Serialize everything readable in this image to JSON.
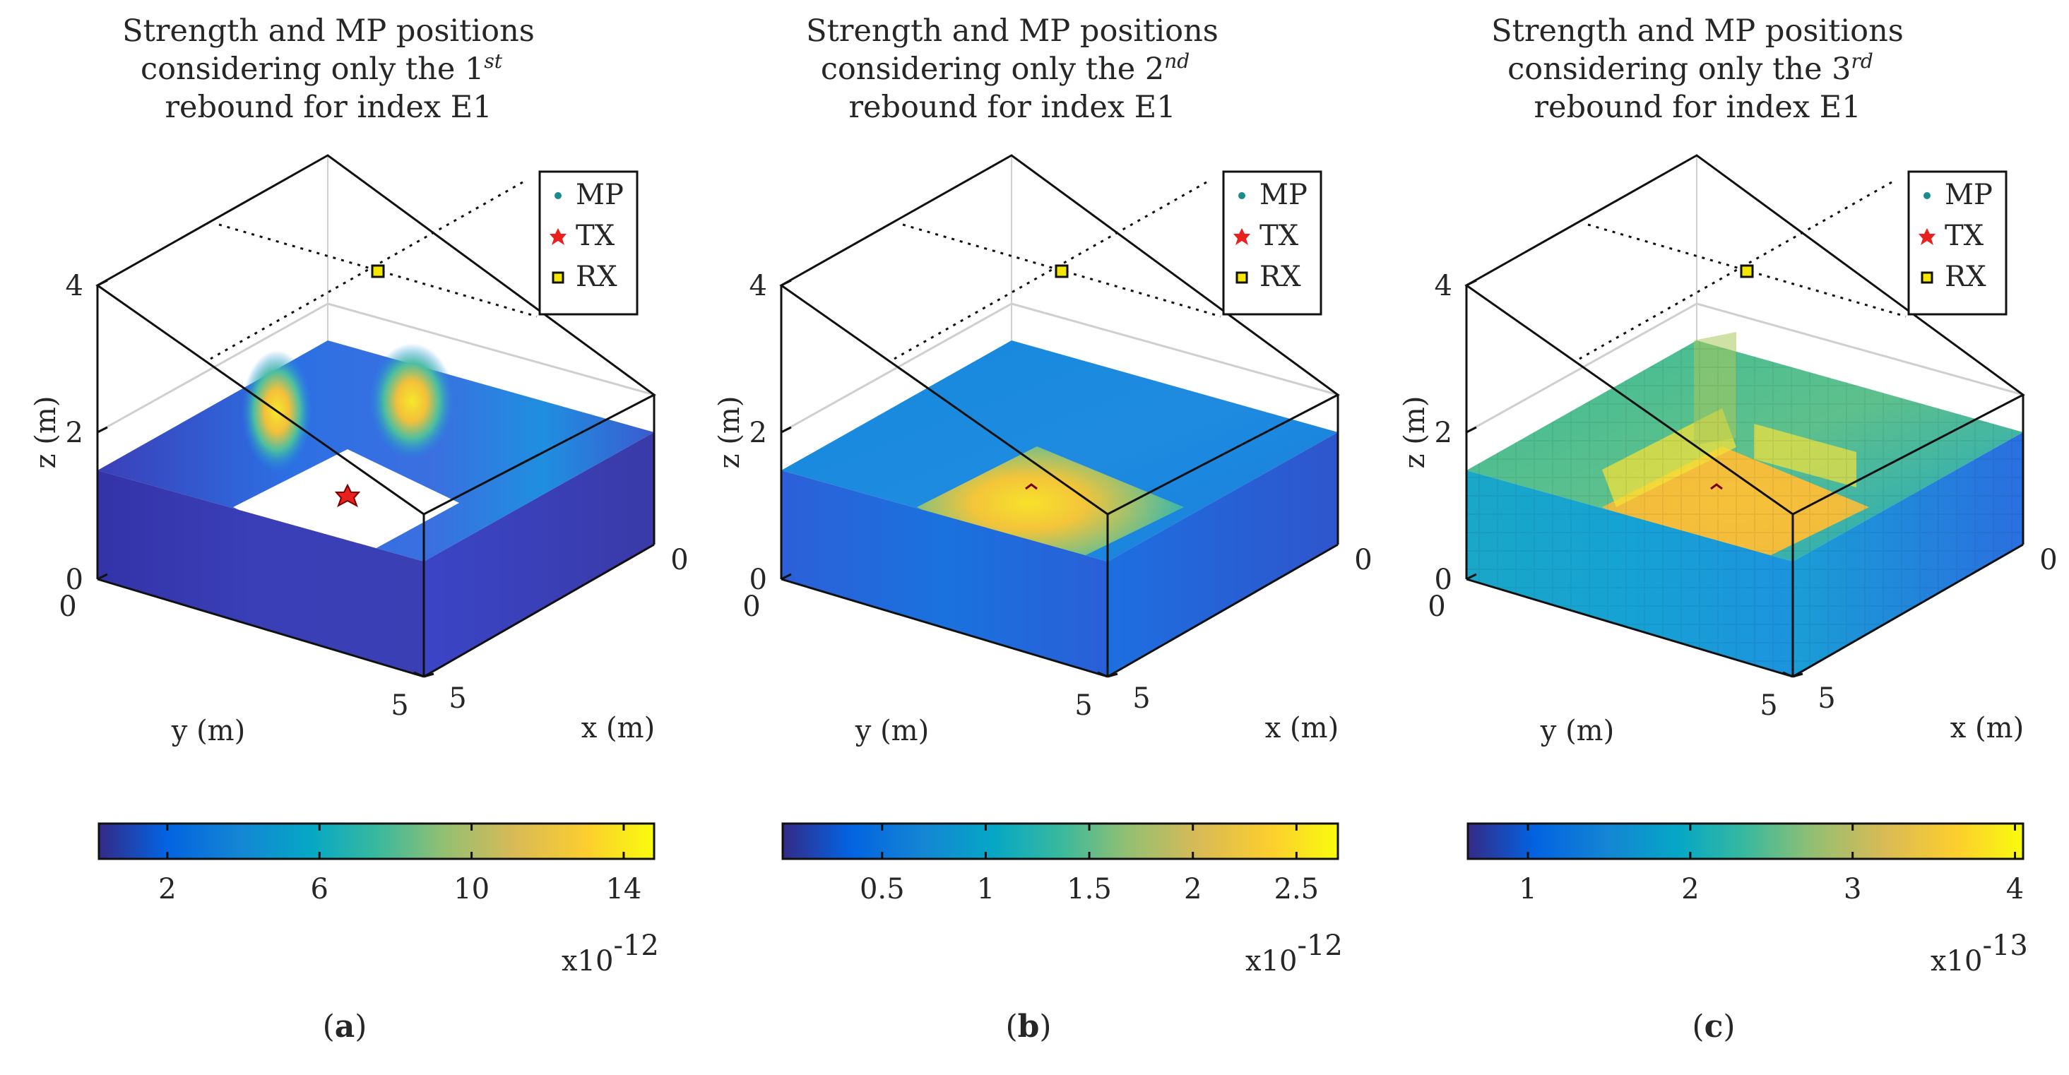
{
  "figure": {
    "panel_labels": [
      "a",
      "b",
      "c"
    ]
  },
  "chart_data": [
    {
      "type": "heatmap",
      "title_lines": [
        "Strength and MP positions",
        "considering only the 1",
        "rebound for index E1"
      ],
      "title_superscript": "st",
      "xlabel": "x (m)",
      "ylabel": "y (m)",
      "zlabel": "z (m)",
      "x_ticks": [
        "0",
        "5"
      ],
      "y_ticks": [
        "0",
        "5"
      ],
      "z_ticks": [
        "0",
        "2",
        "4"
      ],
      "xlim": [
        0,
        5
      ],
      "ylim": [
        0,
        5
      ],
      "zlim": [
        0,
        4
      ],
      "legend": [
        {
          "label": "MP",
          "marker": "dot",
          "color": "#1b8c8c"
        },
        {
          "label": "TX",
          "marker": "hexagram",
          "color": "#e8211f"
        },
        {
          "label": "RX",
          "marker": "square",
          "color": "#f5e800"
        }
      ],
      "colorbar": {
        "ticks": [
          "2",
          "6",
          "10",
          "14"
        ],
        "tick_values": [
          2,
          6,
          10,
          14
        ],
        "range": [
          0.2,
          14.8
        ],
        "exponent_base": "x10",
        "exponent": "-12"
      },
      "surface_peak_level": 1.0,
      "panel_label": "a"
    },
    {
      "type": "heatmap",
      "title_lines": [
        "Strength and MP positions",
        "considering only the 2",
        "rebound for index E1"
      ],
      "title_superscript": "nd",
      "xlabel": "x (m)",
      "ylabel": "y (m)",
      "zlabel": "z (m)",
      "x_ticks": [
        "0",
        "5"
      ],
      "y_ticks": [
        "0",
        "5"
      ],
      "z_ticks": [
        "0",
        "2",
        "4"
      ],
      "xlim": [
        0,
        5
      ],
      "ylim": [
        0,
        5
      ],
      "zlim": [
        0,
        4
      ],
      "legend": [
        {
          "label": "MP",
          "marker": "dot",
          "color": "#1b8c8c"
        },
        {
          "label": "TX",
          "marker": "hexagram",
          "color": "#e8211f"
        },
        {
          "label": "RX",
          "marker": "square",
          "color": "#f5e800"
        }
      ],
      "colorbar": {
        "ticks": [
          "0.5",
          "1",
          "1.5",
          "2",
          "2.5"
        ],
        "tick_values": [
          0.5,
          1,
          1.5,
          2,
          2.5
        ],
        "range": [
          0.02,
          2.7
        ],
        "exponent_base": "x10",
        "exponent": "-12"
      },
      "surface_peak_level": 1.0,
      "panel_label": "b"
    },
    {
      "type": "heatmap",
      "title_lines": [
        "Strength and MP positions",
        "considering only the 3",
        "rebound for index E1"
      ],
      "title_superscript": "rd",
      "xlabel": "x (m)",
      "ylabel": "y (m)",
      "zlabel": "z (m)",
      "x_ticks": [
        "0",
        "5"
      ],
      "y_ticks": [
        "0",
        "5"
      ],
      "z_ticks": [
        "0",
        "2",
        "4"
      ],
      "xlim": [
        0,
        5
      ],
      "ylim": [
        0,
        5
      ],
      "zlim": [
        0,
        4
      ],
      "legend": [
        {
          "label": "MP",
          "marker": "dot",
          "color": "#1b8c8c"
        },
        {
          "label": "TX",
          "marker": "hexagram",
          "color": "#e8211f"
        },
        {
          "label": "RX",
          "marker": "square",
          "color": "#f5e800"
        }
      ],
      "colorbar": {
        "ticks": [
          "1",
          "2",
          "3",
          "4"
        ],
        "tick_values": [
          1,
          2,
          3,
          4
        ],
        "range": [
          0.63,
          4.05
        ],
        "exponent_base": "x10",
        "exponent": "-13"
      },
      "surface_peak_level": 1.0,
      "panel_label": "c"
    }
  ]
}
